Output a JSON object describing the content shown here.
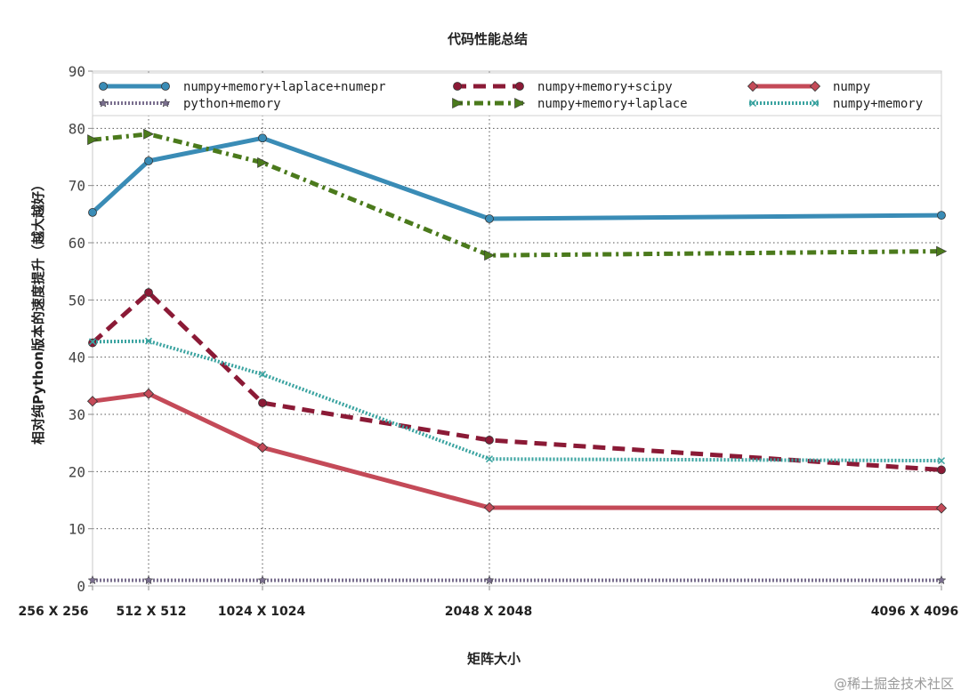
{
  "watermark": "@稀土掘金技术社区",
  "chart_data": {
    "type": "line",
    "title": "代码性能总结",
    "xlabel": "矩阵大小",
    "ylabel": "相对纯Python版本的速度提升（越大越好）",
    "categories": [
      "256 X 256",
      "512 X 512",
      "1024 X 1024",
      "2048 X 2048",
      "4096 X 4096"
    ],
    "x": [
      256,
      512,
      1024,
      2048,
      4096
    ],
    "ylim": [
      0,
      90
    ],
    "yticks": [
      0,
      10,
      20,
      30,
      40,
      50,
      60,
      70,
      80,
      90
    ],
    "grid": true,
    "legend_position": "top",
    "series": [
      {
        "name": "numpy+memory+laplace+numepr",
        "values": [
          65.3,
          74.3,
          78.3,
          64.2,
          64.8
        ],
        "color": "#3a8cb6",
        "style": "solid",
        "marker": "circle"
      },
      {
        "name": "numpy+memory+scipy",
        "values": [
          42.5,
          51.3,
          32.0,
          25.5,
          20.3
        ],
        "color": "#8b1a36",
        "style": "dashed",
        "marker": "circle"
      },
      {
        "name": "numpy",
        "values": [
          32.3,
          33.6,
          24.2,
          13.7,
          13.6
        ],
        "color": "#c44a58",
        "style": "solid",
        "marker": "diamond"
      },
      {
        "name": "python+memory",
        "values": [
          1.0,
          1.0,
          1.0,
          1.0,
          1.0
        ],
        "color": "#7a6f8e",
        "style": "dotted",
        "marker": "star"
      },
      {
        "name": "numpy+memory+laplace",
        "values": [
          78.0,
          79.0,
          74.0,
          57.8,
          58.5
        ],
        "color": "#4b7a1c",
        "style": "dashdot",
        "marker": "triangle"
      },
      {
        "name": "numpy+memory",
        "values": [
          42.7,
          42.8,
          37.0,
          22.2,
          21.9
        ],
        "color": "#3aa3a0",
        "style": "dotted",
        "marker": "x"
      }
    ]
  }
}
